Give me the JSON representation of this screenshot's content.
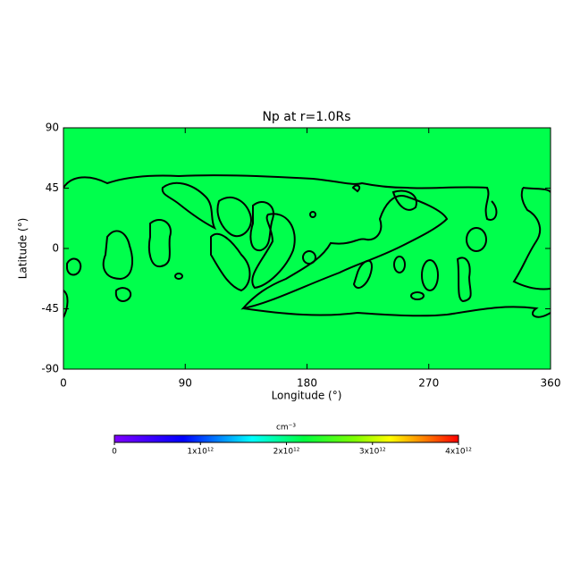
{
  "chart_data": {
    "type": "map",
    "title": "Np at r=1.0Rs",
    "x_label": "Longitude (°)",
    "y_label": "Latitude (°)",
    "xlim": [
      0,
      360
    ],
    "xticks": [
      0,
      90,
      180,
      270,
      360
    ],
    "ylim": [
      -90,
      90
    ],
    "yticks": [
      -90,
      -45,
      0,
      45,
      90
    ],
    "fill_color": "#00ff4c",
    "colorbar": {
      "label": "cm⁻³",
      "lim": [
        0,
        4000000000000
      ],
      "ticks": [
        0,
        {
          "value": 1000000000000,
          "label": "1x10¹²"
        },
        {
          "value": 2000000000000,
          "label": "2x10¹²"
        },
        {
          "value": 3000000000000,
          "label": "3x10¹²"
        },
        {
          "value": 4000000000000,
          "label": "4x10¹²"
        }
      ]
    }
  }
}
